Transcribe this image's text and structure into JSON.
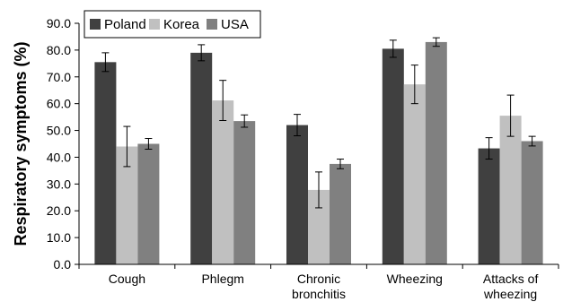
{
  "chart_data": {
    "type": "bar",
    "title": "",
    "xlabel": "",
    "ylabel": "Respiratory symptoms (%)",
    "ylim": [
      0,
      90
    ],
    "yticks": [
      "0.0",
      "10.0",
      "20.0",
      "30.0",
      "40.0",
      "50.0",
      "60.0",
      "70.0",
      "80.0",
      "90.0"
    ],
    "categories": [
      [
        "Cough"
      ],
      [
        "Phlegm"
      ],
      [
        "Chronic",
        "bronchitis"
      ],
      [
        "Wheezing"
      ],
      [
        "Attacks of",
        "wheezing"
      ]
    ],
    "series": [
      {
        "name": "Poland",
        "color": "#404040",
        "values": [
          75.5,
          79.0,
          52.0,
          80.5,
          43.3
        ],
        "errors": [
          3.5,
          3.0,
          4.0,
          3.2,
          4.0
        ]
      },
      {
        "name": "Korea",
        "color": "#c0c0c0",
        "values": [
          44.0,
          61.2,
          27.8,
          67.2,
          55.5
        ],
        "errors": [
          7.5,
          7.5,
          6.7,
          7.2,
          7.7
        ]
      },
      {
        "name": "USA",
        "color": "#808080",
        "values": [
          45.0,
          53.5,
          37.5,
          83.0,
          46.0
        ],
        "errors": [
          2.0,
          2.3,
          1.8,
          1.6,
          1.8
        ]
      }
    ],
    "legend": {
      "position": "top-left",
      "entries": [
        "Poland",
        "Korea",
        "USA"
      ]
    },
    "grid": false
  }
}
